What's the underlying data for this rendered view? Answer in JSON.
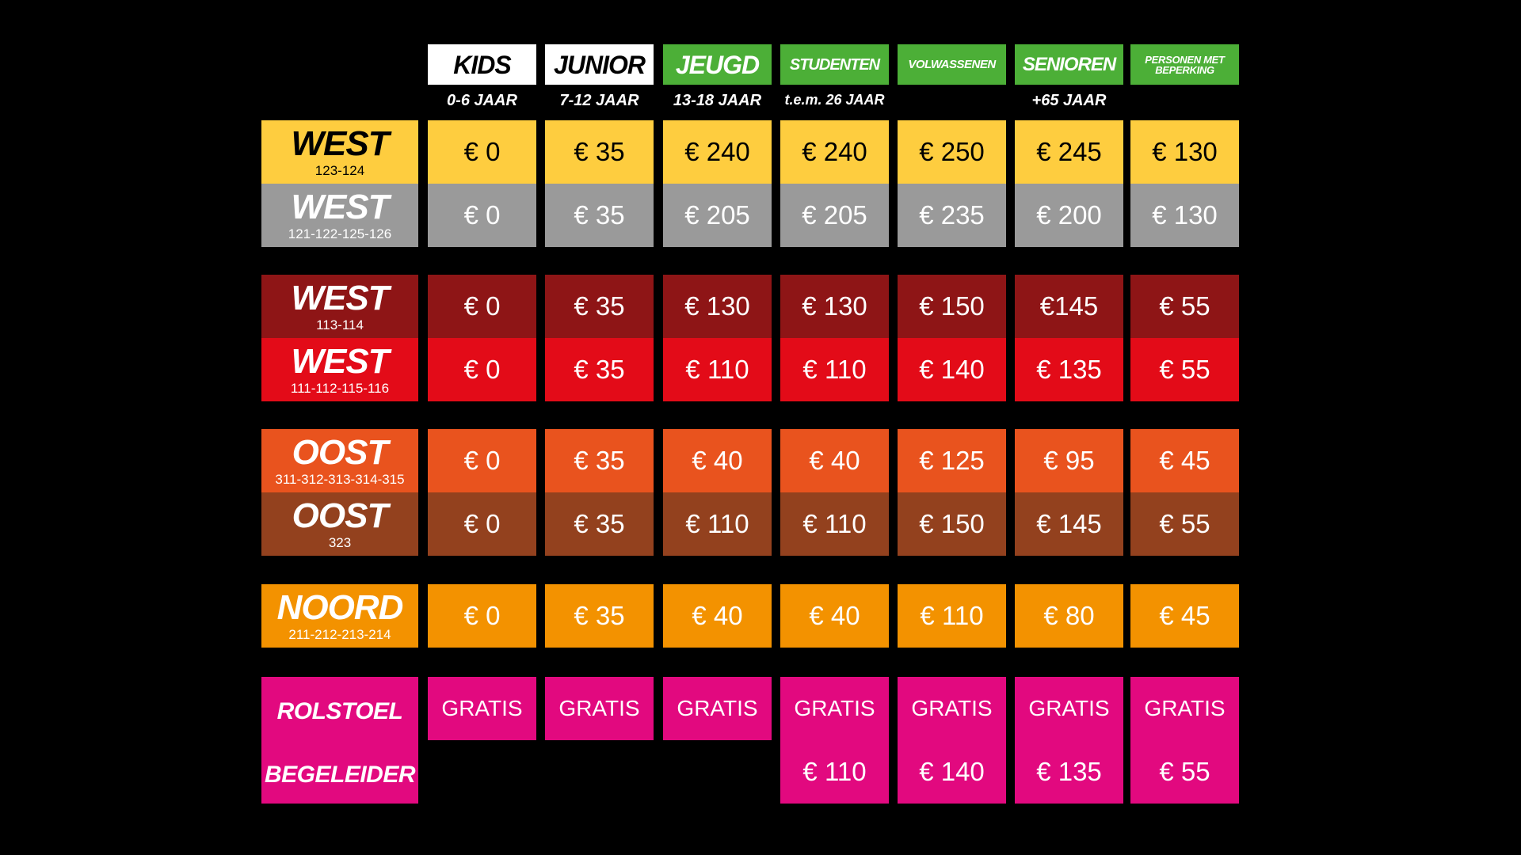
{
  "colors": {
    "background": "#000000",
    "header_white": "#ffffff",
    "header_green": "#4caf37",
    "west_yellow": "#fecd3f",
    "west_grey": "#9a9a9a",
    "west_darkred": "#8e1516",
    "west_red": "#e30b18",
    "oost_orange": "#e9531e",
    "oost_brown": "#93411e",
    "noord_orange": "#f39200",
    "pink": "#e2097f"
  },
  "columns": [
    {
      "title": "KIDS",
      "age": "0-6 JAAR"
    },
    {
      "title": "JUNIOR",
      "age": "7-12 JAAR"
    },
    {
      "title": "JEUGD",
      "age": "13-18 JAAR"
    },
    {
      "title": "STUDENTEN",
      "age": "t.e.m. 26 JAAR"
    },
    {
      "title": "VOLWASSENEN",
      "age": ""
    },
    {
      "title": "SENIOREN",
      "age": "+65 JAAR"
    },
    {
      "title": "PERSONEN MET BEPERKING",
      "age": ""
    }
  ],
  "rows": [
    {
      "zone": "WEST",
      "sections": "123-124",
      "prices": [
        "€ 0",
        "€ 35",
        "€ 240",
        "€ 240",
        "€ 250",
        "€ 245",
        "€ 130"
      ]
    },
    {
      "zone": "WEST",
      "sections": "121-122-125-126",
      "prices": [
        "€ 0",
        "€ 35",
        "€ 205",
        "€ 205",
        "€ 235",
        "€ 200",
        "€ 130"
      ]
    },
    {
      "zone": "WEST",
      "sections": "113-114",
      "prices": [
        "€ 0",
        "€ 35",
        "€ 130",
        "€ 130",
        "€ 150",
        "€145",
        "€ 55"
      ]
    },
    {
      "zone": "WEST",
      "sections": "111-112-115-116",
      "prices": [
        "€ 0",
        "€ 35",
        "€ 110",
        "€ 110",
        "€ 140",
        "€ 135",
        "€ 55"
      ]
    },
    {
      "zone": "OOST",
      "sections": "311-312-313-314-315",
      "prices": [
        "€ 0",
        "€ 35",
        "€ 40",
        "€ 40",
        "€ 125",
        "€ 95",
        "€ 45"
      ]
    },
    {
      "zone": "OOST",
      "sections": "323",
      "prices": [
        "€ 0",
        "€ 35",
        "€ 110",
        "€ 110",
        "€ 150",
        "€ 145",
        "€ 55"
      ]
    },
    {
      "zone": "NOORD",
      "sections": "211-212-213-214",
      "prices": [
        "€ 0",
        "€ 35",
        "€ 40",
        "€ 40",
        "€ 110",
        "€ 80",
        "€ 45"
      ]
    }
  ],
  "rolstoel": {
    "label": "ROLSTOEL",
    "prices": [
      "GRATIS",
      "GRATIS",
      "GRATIS",
      "GRATIS",
      "GRATIS",
      "GRATIS",
      "GRATIS"
    ]
  },
  "begeleider": {
    "label": "BEGELEIDER",
    "prices": [
      "",
      "",
      "",
      "€ 110",
      "€ 140",
      "€ 135",
      "€ 55"
    ]
  }
}
